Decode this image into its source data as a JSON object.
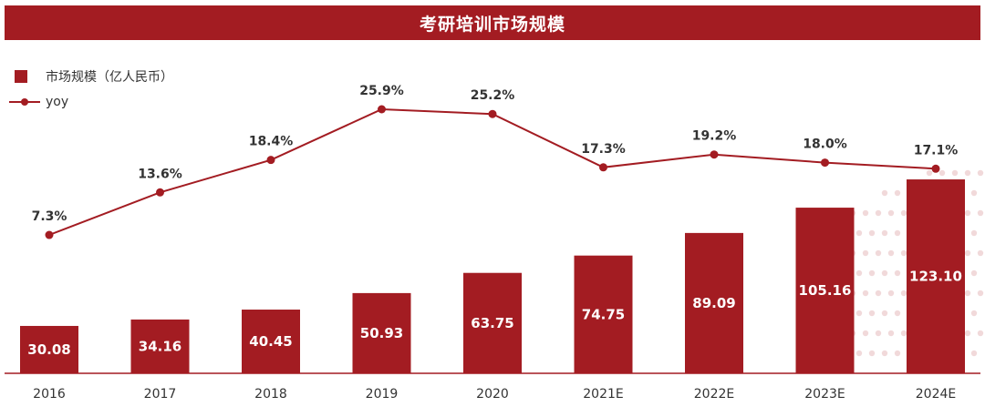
{
  "colors": {
    "accent": "#a31c22",
    "text": "#333333"
  },
  "chart_data": {
    "type": "bar",
    "title": "考研培训市场规模",
    "categories": [
      "2016",
      "2017",
      "2018",
      "2019",
      "2020",
      "2021E",
      "2022E",
      "2023E",
      "2024E"
    ],
    "series": [
      {
        "name": "市场规模（亿人民币）",
        "type": "bar",
        "values": [
          30.08,
          34.16,
          40.45,
          50.93,
          63.75,
          74.75,
          89.09,
          105.16,
          123.1
        ],
        "labels": [
          "30.08",
          "34.16",
          "40.45",
          "50.93",
          "63.75",
          "74.75",
          "89.09",
          "105.16",
          "123.10"
        ]
      },
      {
        "name": "yoy",
        "type": "line",
        "values": [
          7.3,
          13.6,
          18.4,
          25.9,
          25.2,
          17.3,
          19.2,
          18.0,
          17.1
        ],
        "labels": [
          "7.3%",
          "13.6%",
          "18.4%",
          "25.9%",
          "25.2%",
          "17.3%",
          "19.2%",
          "18.0%",
          "17.1%"
        ]
      }
    ],
    "legend_position": "top-left",
    "grid": false
  }
}
